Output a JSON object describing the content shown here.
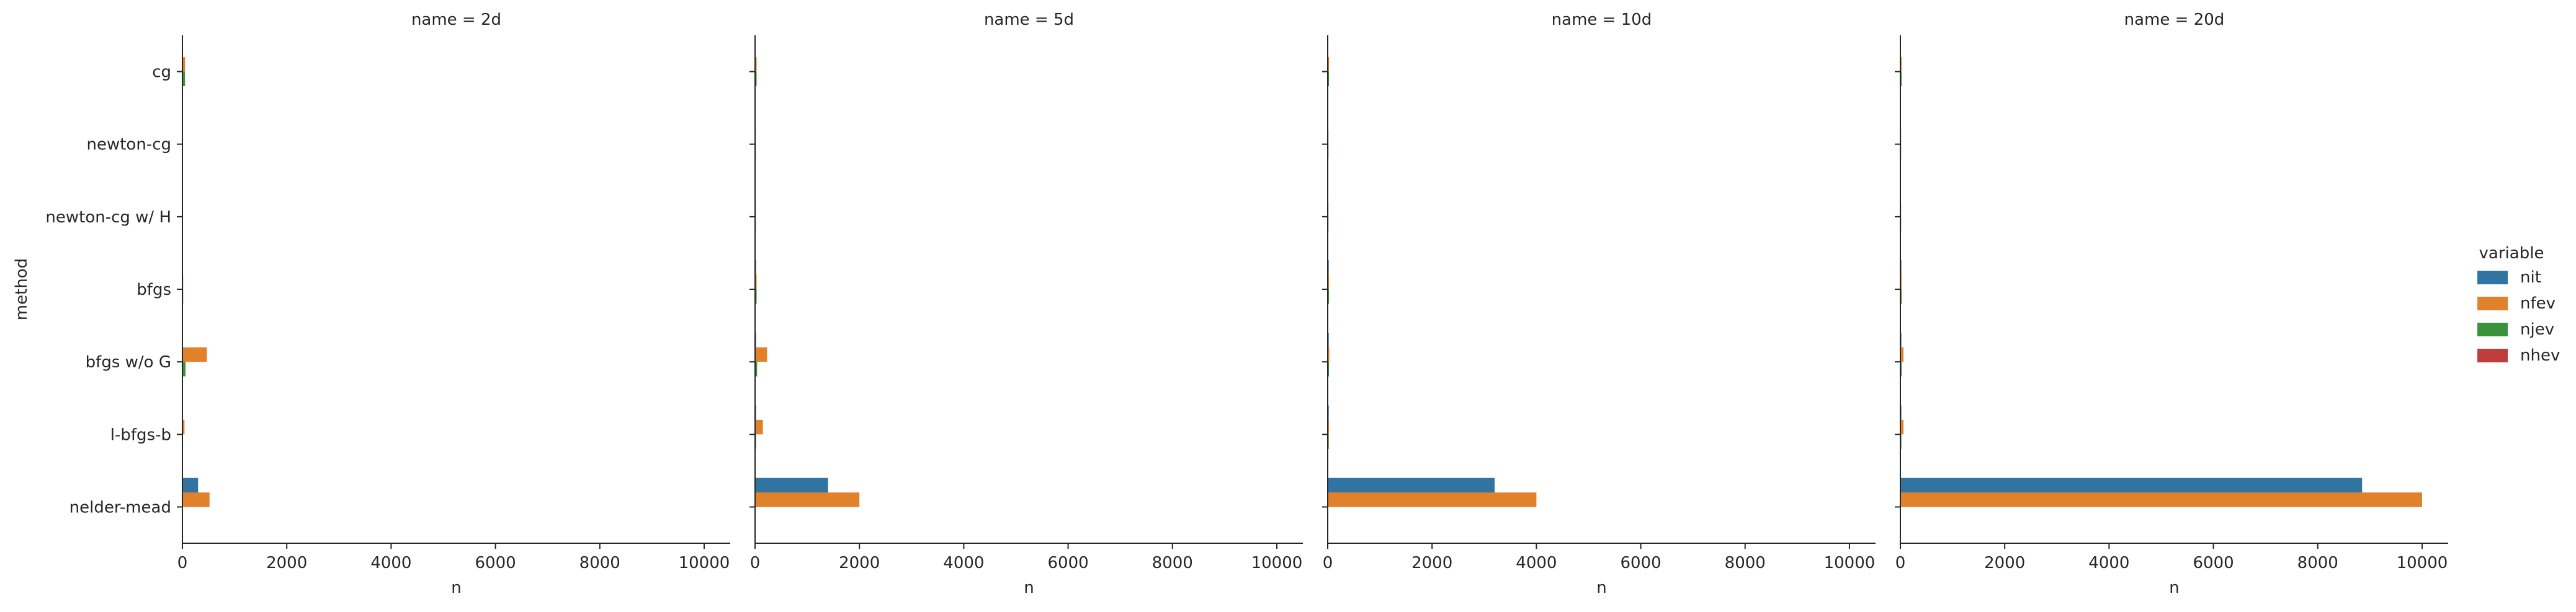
{
  "chart_data": {
    "type": "bar",
    "orientation": "horizontal",
    "categories": [
      "cg",
      "newton-cg",
      "newton-cg w/ H",
      "bfgs",
      "bfgs w/o G",
      "l-bfgs-b",
      "nelder-mead"
    ],
    "xlabel": "n",
    "ylabel": "method",
    "xlim": [
      0,
      10500
    ],
    "xticks": [
      0,
      2000,
      4000,
      6000,
      8000,
      10000
    ],
    "legend": {
      "title": "variable",
      "position": "right",
      "entries": [
        "nit",
        "nfev",
        "njev",
        "nhev"
      ]
    },
    "colors": {
      "nit": "#3274a1",
      "nfev": "#e1812c",
      "njev": "#3a923a",
      "nhev": "#c03d3e"
    },
    "facets": [
      {
        "title": "name = 2d",
        "series": [
          {
            "name": "nit",
            "values": [
              10,
              8,
              8,
              10,
              10,
              10,
              300
            ]
          },
          {
            "name": "nfev",
            "values": [
              50,
              10,
              10,
              15,
              470,
              40,
              520
            ]
          },
          {
            "name": "njev",
            "values": [
              50,
              10,
              10,
              15,
              60,
              10,
              0
            ]
          },
          {
            "name": "nhev",
            "values": [
              0,
              8,
              8,
              0,
              0,
              0,
              0
            ]
          }
        ]
      },
      {
        "title": "name = 5d",
        "series": [
          {
            "name": "nit",
            "values": [
              10,
              10,
              10,
              20,
              20,
              20,
              1400
            ]
          },
          {
            "name": "nfev",
            "values": [
              30,
              15,
              15,
              30,
              230,
              150,
              2000
            ]
          },
          {
            "name": "njev",
            "values": [
              30,
              15,
              15,
              30,
              40,
              20,
              0
            ]
          },
          {
            "name": "nhev",
            "values": [
              0,
              10,
              10,
              0,
              0,
              0,
              0
            ]
          }
        ]
      },
      {
        "title": "name = 10d",
        "series": [
          {
            "name": "nit",
            "values": [
              10,
              10,
              10,
              20,
              20,
              20,
              3200
            ]
          },
          {
            "name": "nfev",
            "values": [
              25,
              15,
              15,
              25,
              30,
              25,
              4000
            ]
          },
          {
            "name": "njev",
            "values": [
              25,
              15,
              15,
              25,
              25,
              20,
              0
            ]
          },
          {
            "name": "nhev",
            "values": [
              0,
              10,
              10,
              0,
              0,
              0,
              0
            ]
          }
        ]
      },
      {
        "title": "name = 20d",
        "series": [
          {
            "name": "nit",
            "values": [
              10,
              10,
              10,
              20,
              20,
              20,
              8850
            ]
          },
          {
            "name": "nfev",
            "values": [
              25,
              15,
              15,
              25,
              60,
              60,
              10000
            ]
          },
          {
            "name": "njev",
            "values": [
              25,
              15,
              15,
              25,
              25,
              20,
              0
            ]
          },
          {
            "name": "nhev",
            "values": [
              0,
              10,
              10,
              0,
              0,
              0,
              0
            ]
          }
        ]
      }
    ]
  }
}
